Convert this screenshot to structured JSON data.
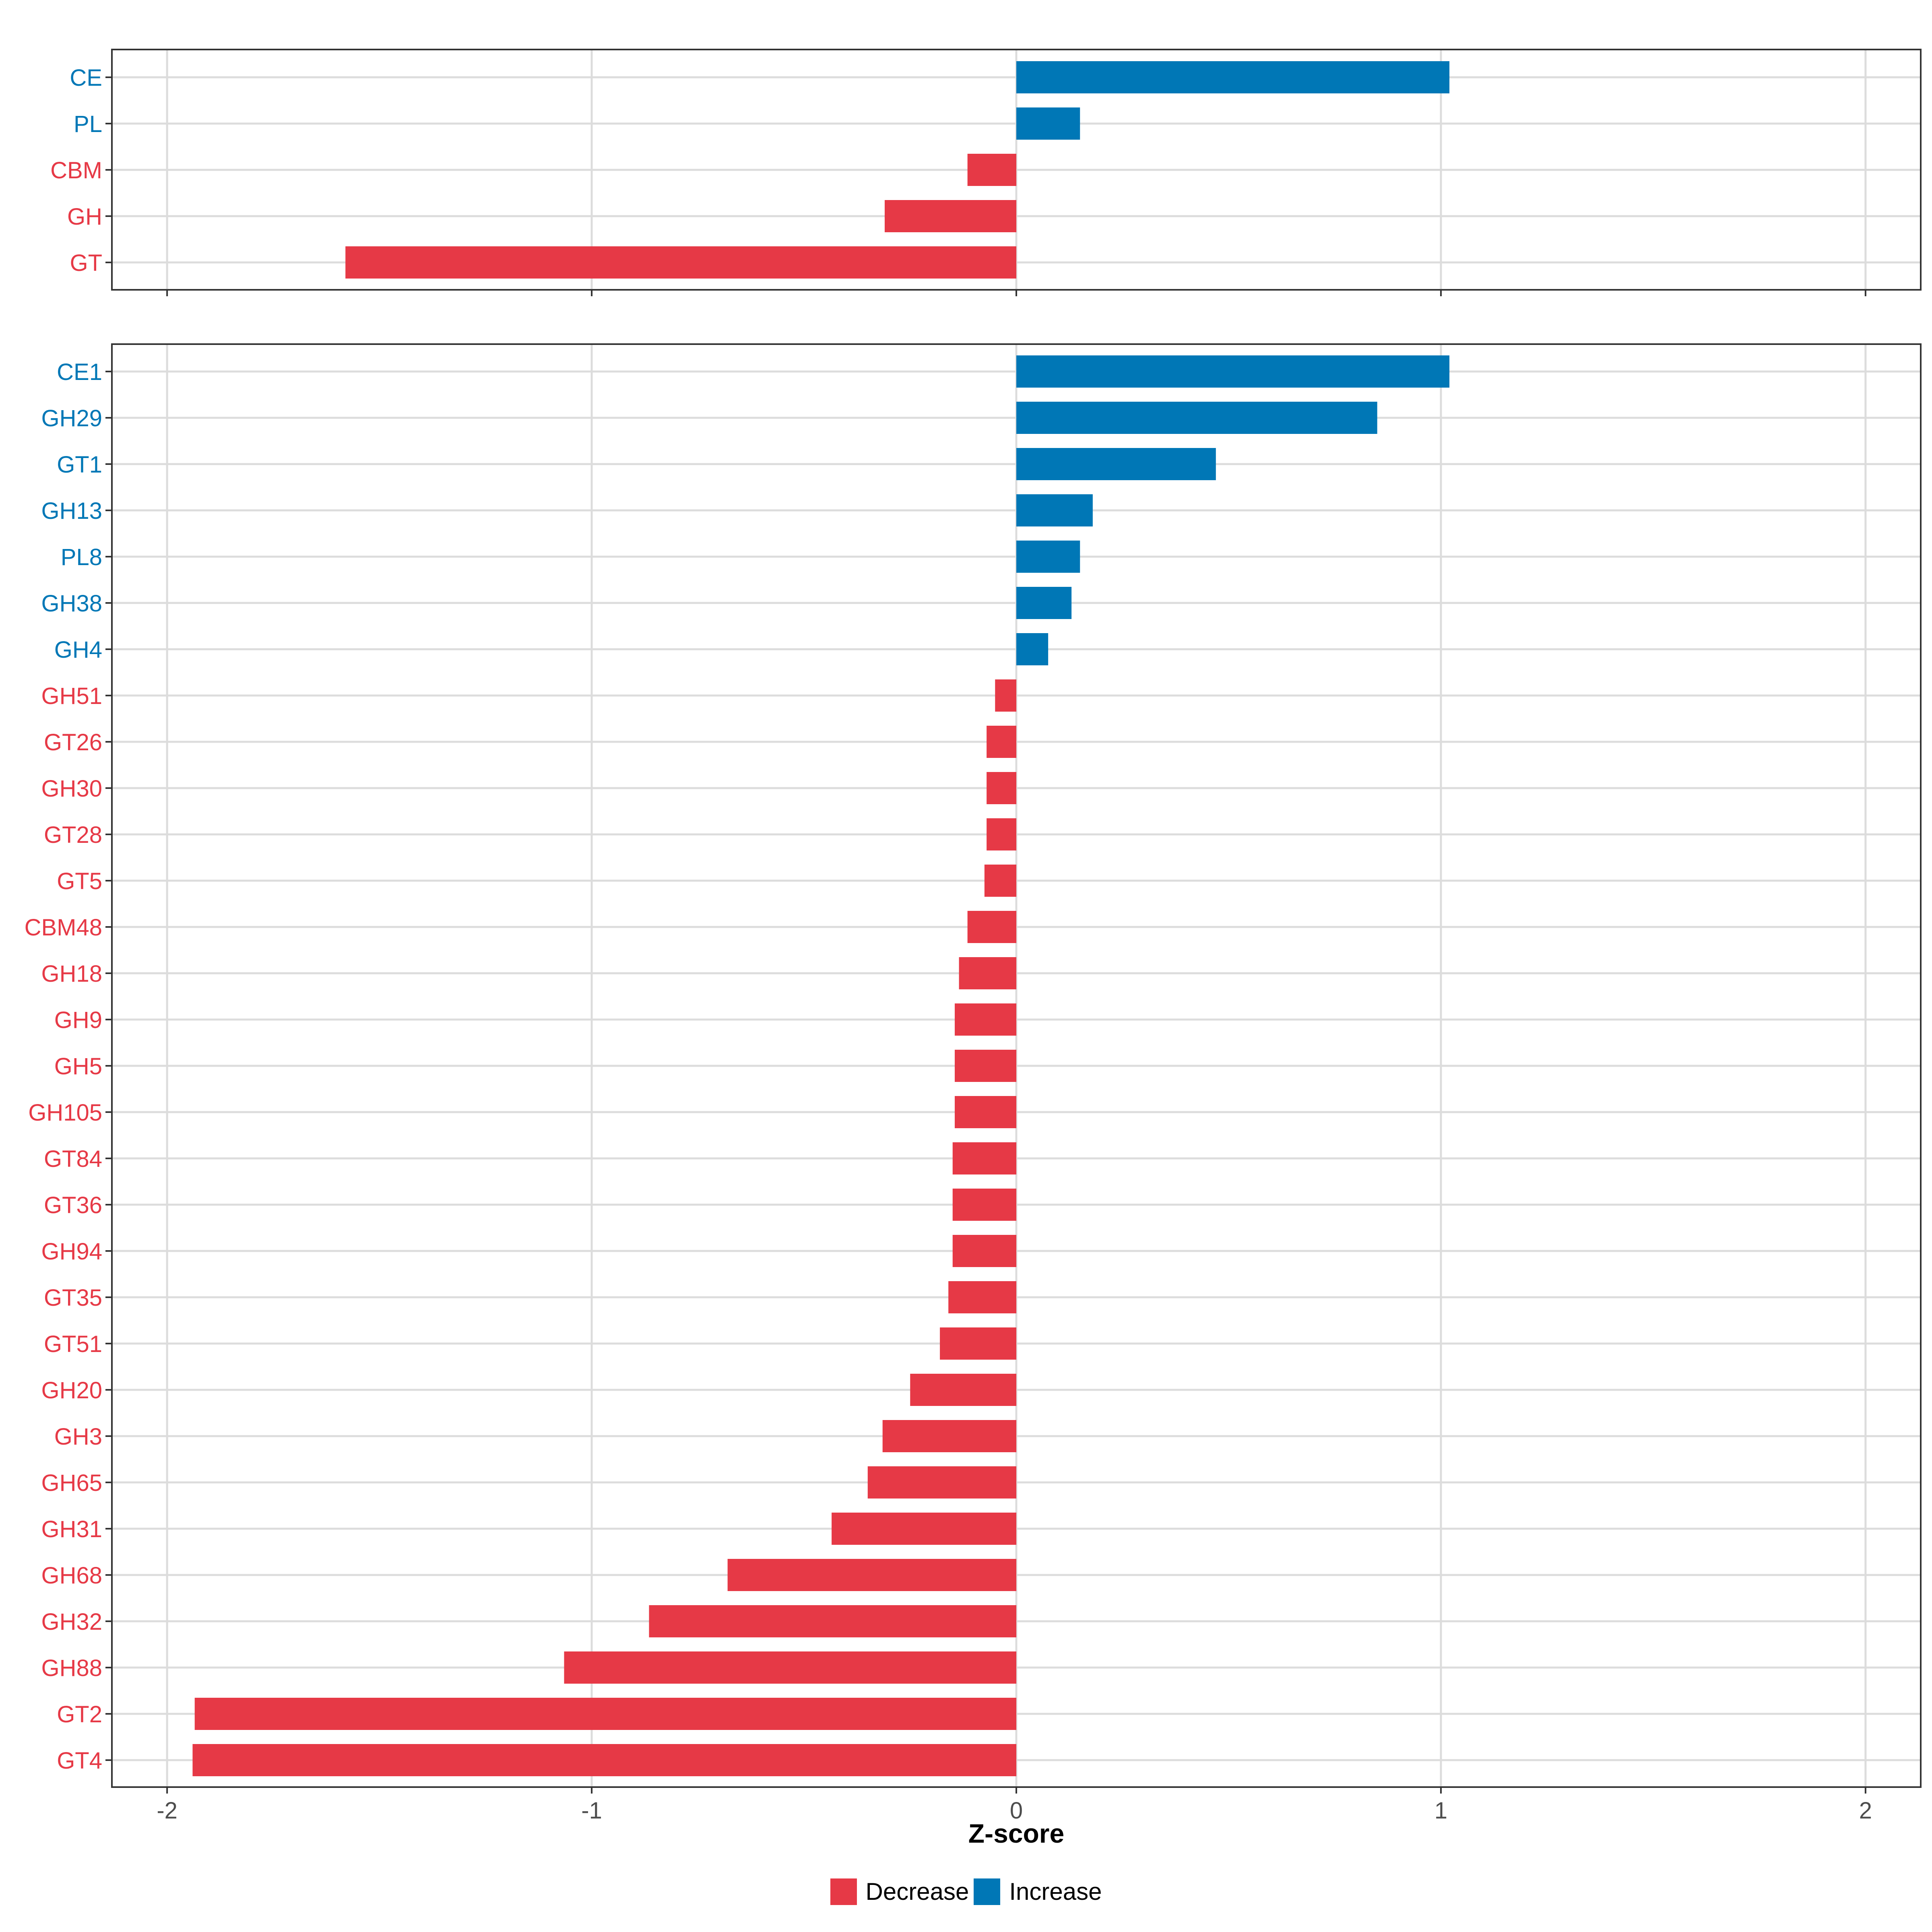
{
  "colors": {
    "decrease": "#E63946",
    "increase": "#0077B6",
    "grid": "#DCDCDC",
    "axis": "#333333",
    "tick_label": "#4D4D4D"
  },
  "chart_data": [
    {
      "type": "bar",
      "orientation": "horizontal",
      "panel": "top",
      "categories": [
        "CE",
        "PL",
        "CBM",
        "GH",
        "GT"
      ],
      "values": [
        1.02,
        0.15,
        -0.115,
        -0.31,
        -1.58
      ],
      "xlim": [
        -2.13,
        2.13
      ],
      "xticks": [
        -2,
        -1,
        0,
        1,
        2
      ],
      "grid": true
    },
    {
      "type": "bar",
      "orientation": "horizontal",
      "panel": "bottom",
      "categories": [
        "CE1",
        "GH29",
        "GT1",
        "GH13",
        "PL8",
        "GH38",
        "GH4",
        "GH51",
        "GT26",
        "GH30",
        "GT28",
        "GT5",
        "CBM48",
        "GH18",
        "GH9",
        "GH5",
        "GH105",
        "GT84",
        "GT36",
        "GH94",
        "GT35",
        "GT51",
        "GH20",
        "GH3",
        "GH65",
        "GH31",
        "GH68",
        "GH32",
        "GH88",
        "GT2",
        "GT4"
      ],
      "values": [
        1.02,
        0.85,
        0.47,
        0.18,
        0.15,
        0.13,
        0.075,
        -0.05,
        -0.07,
        -0.07,
        -0.07,
        -0.075,
        -0.115,
        -0.135,
        -0.145,
        -0.145,
        -0.145,
        -0.15,
        -0.15,
        -0.15,
        -0.16,
        -0.18,
        -0.25,
        -0.315,
        -0.35,
        -0.435,
        -0.68,
        -0.865,
        -1.065,
        -1.935,
        -1.94
      ],
      "xlim": [
        -2.13,
        2.13
      ],
      "xticks": [
        -2,
        -1,
        0,
        1,
        2
      ],
      "xlabel": "Z-score",
      "grid": true
    }
  ],
  "legend": {
    "decrease_label": "Decrease",
    "increase_label": "Increase"
  }
}
